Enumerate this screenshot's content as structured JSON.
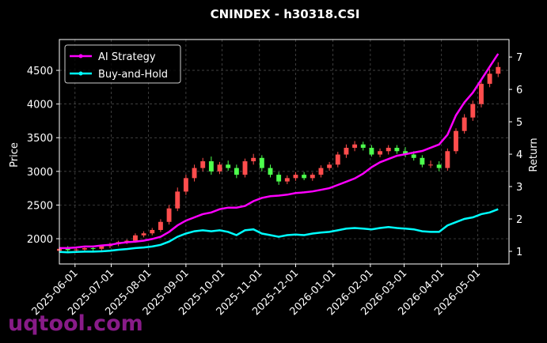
{
  "chart_data": {
    "type": "candlestick",
    "title": "CNINDEX - h30318.CSI",
    "ylabel": "Price",
    "y2label": "Return",
    "watermark": "uqtool.com",
    "xlim": [
      "2025-05-19",
      "2026-05-27"
    ],
    "xticks": [
      "2025-06-01",
      "2025-07-01",
      "2025-08-01",
      "2025-09-01",
      "2025-10-01",
      "2025-11-01",
      "2025-12-01",
      "2026-01-01",
      "2026-02-01",
      "2026-03-01",
      "2026-04-01",
      "2026-05-01"
    ],
    "ylim": [
      1625,
      4958
    ],
    "yticks": [
      2000,
      2500,
      3000,
      3500,
      4000,
      4500
    ],
    "y2lim": [
      0.61,
      7.54
    ],
    "y2ticks": [
      1,
      2,
      3,
      4,
      5,
      6,
      7
    ],
    "grid": true,
    "legend": "upper left",
    "up_color": "#ff4d4d",
    "down_color": "#4dff4d",
    "x": [
      "2025-05-19",
      "2025-05-26",
      "2025-06-02",
      "2025-06-09",
      "2025-06-16",
      "2025-06-23",
      "2025-06-30",
      "2025-07-07",
      "2025-07-14",
      "2025-07-21",
      "2025-07-28",
      "2025-08-04",
      "2025-08-11",
      "2025-08-18",
      "2025-08-25",
      "2025-09-01",
      "2025-09-08",
      "2025-09-15",
      "2025-09-22",
      "2025-09-29",
      "2025-10-06",
      "2025-10-13",
      "2025-10-20",
      "2025-10-27",
      "2025-11-03",
      "2025-11-10",
      "2025-11-17",
      "2025-11-24",
      "2025-12-01",
      "2025-12-08",
      "2025-12-15",
      "2025-12-22",
      "2025-12-29",
      "2026-01-05",
      "2026-01-12",
      "2026-01-19",
      "2026-01-26",
      "2026-02-02",
      "2026-02-09",
      "2026-02-16",
      "2026-02-23",
      "2026-03-02",
      "2026-03-09",
      "2026-03-16",
      "2026-03-23",
      "2026-03-30",
      "2026-04-06",
      "2026-04-13",
      "2026-04-20",
      "2026-04-27",
      "2026-05-04",
      "2026-05-11",
      "2026-05-18"
    ],
    "open": [
      1820,
      1850,
      1830,
      1840,
      1860,
      1850,
      1890,
      1920,
      1950,
      1970,
      2050,
      2080,
      2130,
      2250,
      2450,
      2700,
      2900,
      3050,
      3150,
      3000,
      3100,
      3050,
      2950,
      3150,
      3200,
      3050,
      2950,
      2850,
      2900,
      2950,
      2900,
      2950,
      3050,
      3100,
      3250,
      3350,
      3400,
      3350,
      3250,
      3300,
      3350,
      3300,
      3250,
      3200,
      3100,
      3100,
      3050,
      3300,
      3600,
      3800,
      4000,
      4300,
      4450
    ],
    "high": [
      1880,
      1890,
      1870,
      1880,
      1900,
      1910,
      1940,
      1970,
      1990,
      2080,
      2110,
      2160,
      2290,
      2500,
      2760,
      2950,
      3100,
      3200,
      3220,
      3140,
      3160,
      3100,
      3190,
      3260,
      3240,
      3100,
      2990,
      2940,
      2990,
      2990,
      2980,
      3090,
      3140,
      3290,
      3400,
      3450,
      3440,
      3390,
      3340,
      3390,
      3390,
      3360,
      3300,
      3240,
      3160,
      3150,
      3340,
      3640,
      3850,
      4050,
      4350,
      4520,
      4620
    ],
    "low": [
      1790,
      1800,
      1800,
      1810,
      1820,
      1820,
      1860,
      1890,
      1920,
      1940,
      2020,
      2050,
      2100,
      2210,
      2410,
      2650,
      2850,
      3000,
      2950,
      2960,
      3010,
      2900,
      2910,
      3100,
      3000,
      2910,
      2800,
      2810,
      2860,
      2870,
      2860,
      2910,
      3010,
      3060,
      3200,
      3300,
      3310,
      3220,
      3210,
      3250,
      3260,
      3210,
      3160,
      3060,
      3050,
      3000,
      3010,
      3260,
      3560,
      3750,
      3950,
      4250,
      4400
    ],
    "close": [
      1850,
      1830,
      1840,
      1860,
      1850,
      1890,
      1920,
      1950,
      1970,
      2050,
      2080,
      2130,
      2250,
      2450,
      2700,
      2900,
      3050,
      3150,
      3000,
      3100,
      3050,
      2950,
      3150,
      3200,
      3050,
      2950,
      2850,
      2900,
      2950,
      2900,
      2950,
      3050,
      3100,
      3250,
      3350,
      3400,
      3350,
      3250,
      3300,
      3350,
      3300,
      3250,
      3200,
      3100,
      3100,
      3050,
      3300,
      3600,
      3800,
      4000,
      4300,
      4450,
      4550
    ],
    "series": [
      {
        "name": "AI Strategy",
        "color": "#ff00ff",
        "axis": "y2",
        "values": [
          1.1,
          1.1,
          1.12,
          1.15,
          1.15,
          1.18,
          1.2,
          1.25,
          1.28,
          1.3,
          1.33,
          1.38,
          1.45,
          1.6,
          1.8,
          1.95,
          2.05,
          2.15,
          2.2,
          2.3,
          2.35,
          2.35,
          2.4,
          2.55,
          2.65,
          2.7,
          2.72,
          2.75,
          2.8,
          2.82,
          2.85,
          2.9,
          2.95,
          3.05,
          3.15,
          3.25,
          3.4,
          3.6,
          3.75,
          3.85,
          3.95,
          4.0,
          4.05,
          4.1,
          4.2,
          4.3,
          4.6,
          5.2,
          5.6,
          5.9,
          6.3,
          6.7,
          7.1
        ]
      },
      {
        "name": "Buy-and-Hold",
        "color": "#00ffff",
        "axis": "y2",
        "values": [
          0.98,
          0.97,
          0.98,
          0.99,
          0.99,
          1.0,
          1.02,
          1.05,
          1.07,
          1.1,
          1.12,
          1.15,
          1.2,
          1.3,
          1.45,
          1.55,
          1.62,
          1.65,
          1.62,
          1.65,
          1.6,
          1.5,
          1.65,
          1.68,
          1.55,
          1.5,
          1.45,
          1.5,
          1.52,
          1.5,
          1.55,
          1.58,
          1.6,
          1.65,
          1.7,
          1.72,
          1.7,
          1.68,
          1.72,
          1.75,
          1.72,
          1.7,
          1.68,
          1.62,
          1.6,
          1.6,
          1.8,
          1.9,
          2.0,
          2.05,
          2.15,
          2.2,
          2.3
        ]
      }
    ]
  }
}
